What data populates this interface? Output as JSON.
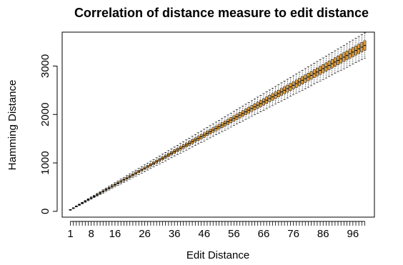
{
  "chart_data": {
    "type": "box",
    "title": "Correlation of distance measure to edit distance",
    "xlabel": "Edit Distance",
    "ylabel": "Hamming Distance",
    "x_tick_labels": [
      "1",
      "8",
      "16",
      "26",
      "36",
      "46",
      "56",
      "66",
      "76",
      "86",
      "96"
    ],
    "y_tick_labels": [
      "0",
      "1000",
      "2000",
      "3000"
    ],
    "y_ticks": [
      0,
      1000,
      2000,
      3000
    ],
    "ylim": [
      -120,
      3700
    ],
    "box_color": "#e8a33c",
    "categories": [
      1,
      2,
      3,
      4,
      5,
      6,
      7,
      8,
      9,
      10,
      11,
      12,
      13,
      14,
      15,
      16,
      17,
      18,
      19,
      20,
      21,
      22,
      23,
      24,
      25,
      26,
      27,
      28,
      29,
      30,
      31,
      32,
      33,
      34,
      35,
      36,
      37,
      38,
      39,
      40,
      41,
      42,
      43,
      44,
      45,
      46,
      47,
      48,
      49,
      50,
      51,
      52,
      53,
      54,
      55,
      56,
      57,
      58,
      59,
      60,
      61,
      62,
      63,
      64,
      65,
      66,
      67,
      68,
      69,
      70,
      71,
      72,
      73,
      74,
      75,
      76,
      77,
      78,
      79,
      80,
      81,
      82,
      83,
      84,
      85,
      86,
      87,
      88,
      89,
      90,
      91,
      92,
      93,
      94,
      95,
      96,
      97,
      98,
      99,
      100
    ],
    "medians": [
      34,
      68,
      103,
      137,
      171,
      205,
      240,
      274,
      308,
      342,
      377,
      411,
      445,
      479,
      514,
      548,
      582,
      616,
      651,
      685,
      719,
      753,
      788,
      822,
      856,
      890,
      925,
      959,
      993,
      1027,
      1062,
      1096,
      1130,
      1164,
      1199,
      1233,
      1267,
      1301,
      1336,
      1370,
      1404,
      1438,
      1473,
      1507,
      1541,
      1575,
      1610,
      1644,
      1678,
      1712,
      1747,
      1781,
      1815,
      1849,
      1884,
      1918,
      1952,
      1986,
      2021,
      2055,
      2089,
      2123,
      2158,
      2192,
      2226,
      2260,
      2295,
      2329,
      2363,
      2397,
      2432,
      2466,
      2500,
      2534,
      2569,
      2603,
      2637,
      2671,
      2706,
      2740,
      2774,
      2808,
      2843,
      2877,
      2911,
      2945,
      2980,
      3014,
      3048,
      3082,
      3117,
      3151,
      3185,
      3219,
      3254,
      3288,
      3322,
      3356,
      3391,
      3425
    ]
  }
}
